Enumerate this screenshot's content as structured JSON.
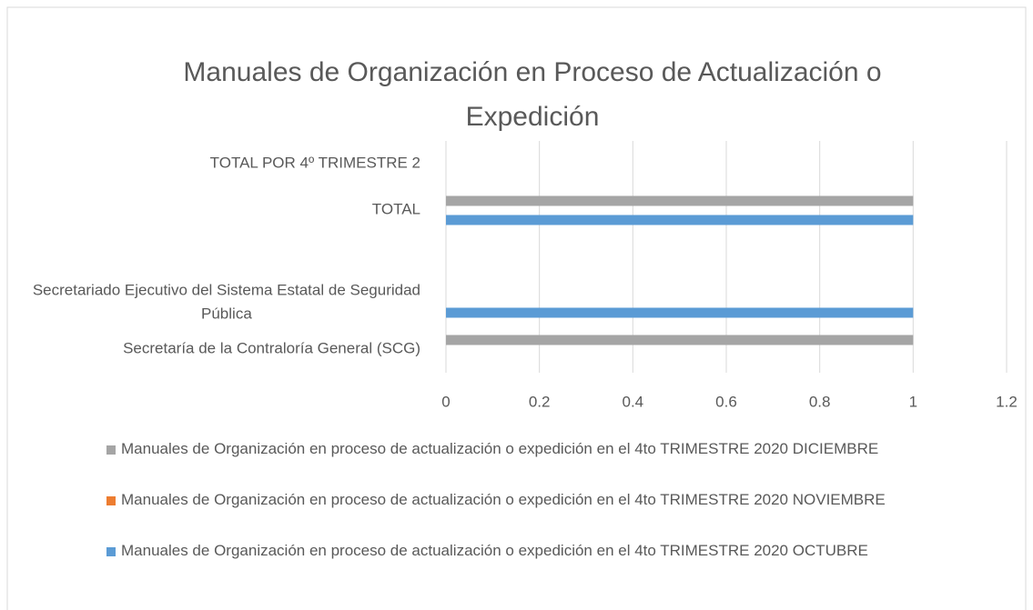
{
  "chart_data": {
    "type": "bar",
    "orientation": "horizontal",
    "title": "Manuales de Organización en Proceso de Actualización o Expedición",
    "categories": [
      "Secretaría de la Contraloría General (SCG)",
      "Secretariado Ejecutivo del Sistema Estatal de Seguridad Pública",
      null,
      "TOTAL",
      "TOTAL POR 4º  TRIMESTRE 2"
    ],
    "series": [
      {
        "name": "Manuales de Organización en proceso de actualización o expedición en el 4to TRIMESTRE 2020 DICIEMBRE",
        "color": "#a5a5a5",
        "values": [
          1,
          null,
          null,
          1,
          null
        ]
      },
      {
        "name": "Manuales de Organización en proceso de actualización o expedición en el 4to TRIMESTRE 2020 NOVIEMBRE",
        "color": "#ed7d31",
        "values": [
          null,
          null,
          null,
          null,
          null
        ]
      },
      {
        "name": "Manuales de Organización en proceso de actualización o expedición en el 4to TRIMESTRE 2020 OCTUBRE",
        "color": "#5b9bd5",
        "values": [
          null,
          1,
          null,
          1,
          null
        ]
      }
    ],
    "xlim": [
      0,
      1.2
    ],
    "xticks": [
      0,
      0.2,
      0.4,
      0.6,
      0.8,
      1,
      1.2
    ],
    "grid": true,
    "legend": "bottom"
  }
}
